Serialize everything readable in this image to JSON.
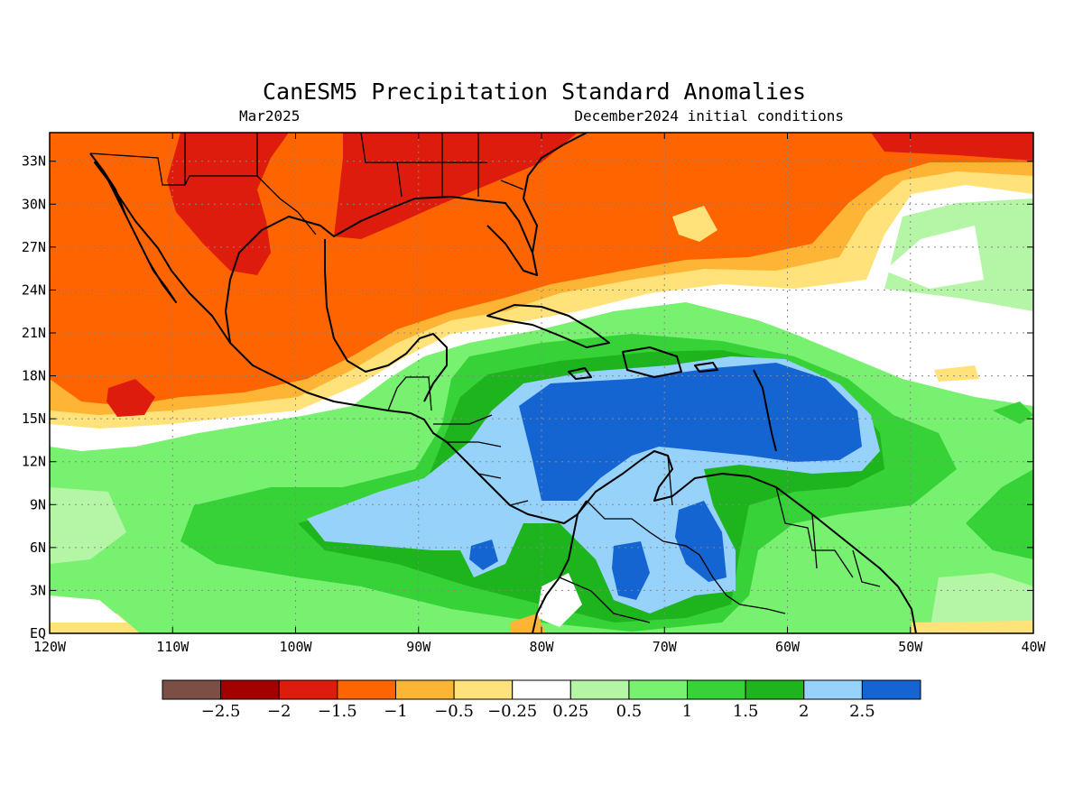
{
  "title": "CanESM5 Precipitation Standard Anomalies",
  "subtitle_left": "Mar2025",
  "subtitle_right": "December2024 initial conditions",
  "map": {
    "lon_range": [
      -120,
      -40
    ],
    "lat_range": [
      0,
      35
    ],
    "grid": true,
    "lon_ticks": [
      {
        "value": -120,
        "label": "120W"
      },
      {
        "value": -110,
        "label": "110W"
      },
      {
        "value": -100,
        "label": "100W"
      },
      {
        "value": -90,
        "label": "90W"
      },
      {
        "value": -80,
        "label": "80W"
      },
      {
        "value": -70,
        "label": "70W"
      },
      {
        "value": -60,
        "label": "60W"
      },
      {
        "value": -50,
        "label": "50W"
      },
      {
        "value": -40,
        "label": "40W"
      }
    ],
    "lat_ticks": [
      {
        "value": 0,
        "label": "EQ"
      },
      {
        "value": 3,
        "label": "3N"
      },
      {
        "value": 6,
        "label": "6N"
      },
      {
        "value": 9,
        "label": "9N"
      },
      {
        "value": 12,
        "label": "12N"
      },
      {
        "value": 15,
        "label": "15N"
      },
      {
        "value": 18,
        "label": "18N"
      },
      {
        "value": 21,
        "label": "21N"
      },
      {
        "value": 24,
        "label": "24N"
      },
      {
        "value": 27,
        "label": "27N"
      },
      {
        "value": 30,
        "label": "30N"
      },
      {
        "value": 33,
        "label": "33N"
      }
    ]
  },
  "colorbar": {
    "colors": [
      "#7b4f45",
      "#a30000",
      "#dd1c0e",
      "#fe6400",
      "#feb434",
      "#ffe27a",
      "#ffffff",
      "#b4f6a6",
      "#78f070",
      "#36d238",
      "#1eb41e",
      "#96d2fa",
      "#1464d2"
    ],
    "labels": [
      "−2.5",
      "−2",
      "−1.5",
      "−1",
      "−0.5",
      "−0.25",
      "0.25",
      "0.5",
      "1",
      "1.5",
      "2",
      "2.5"
    ]
  }
}
